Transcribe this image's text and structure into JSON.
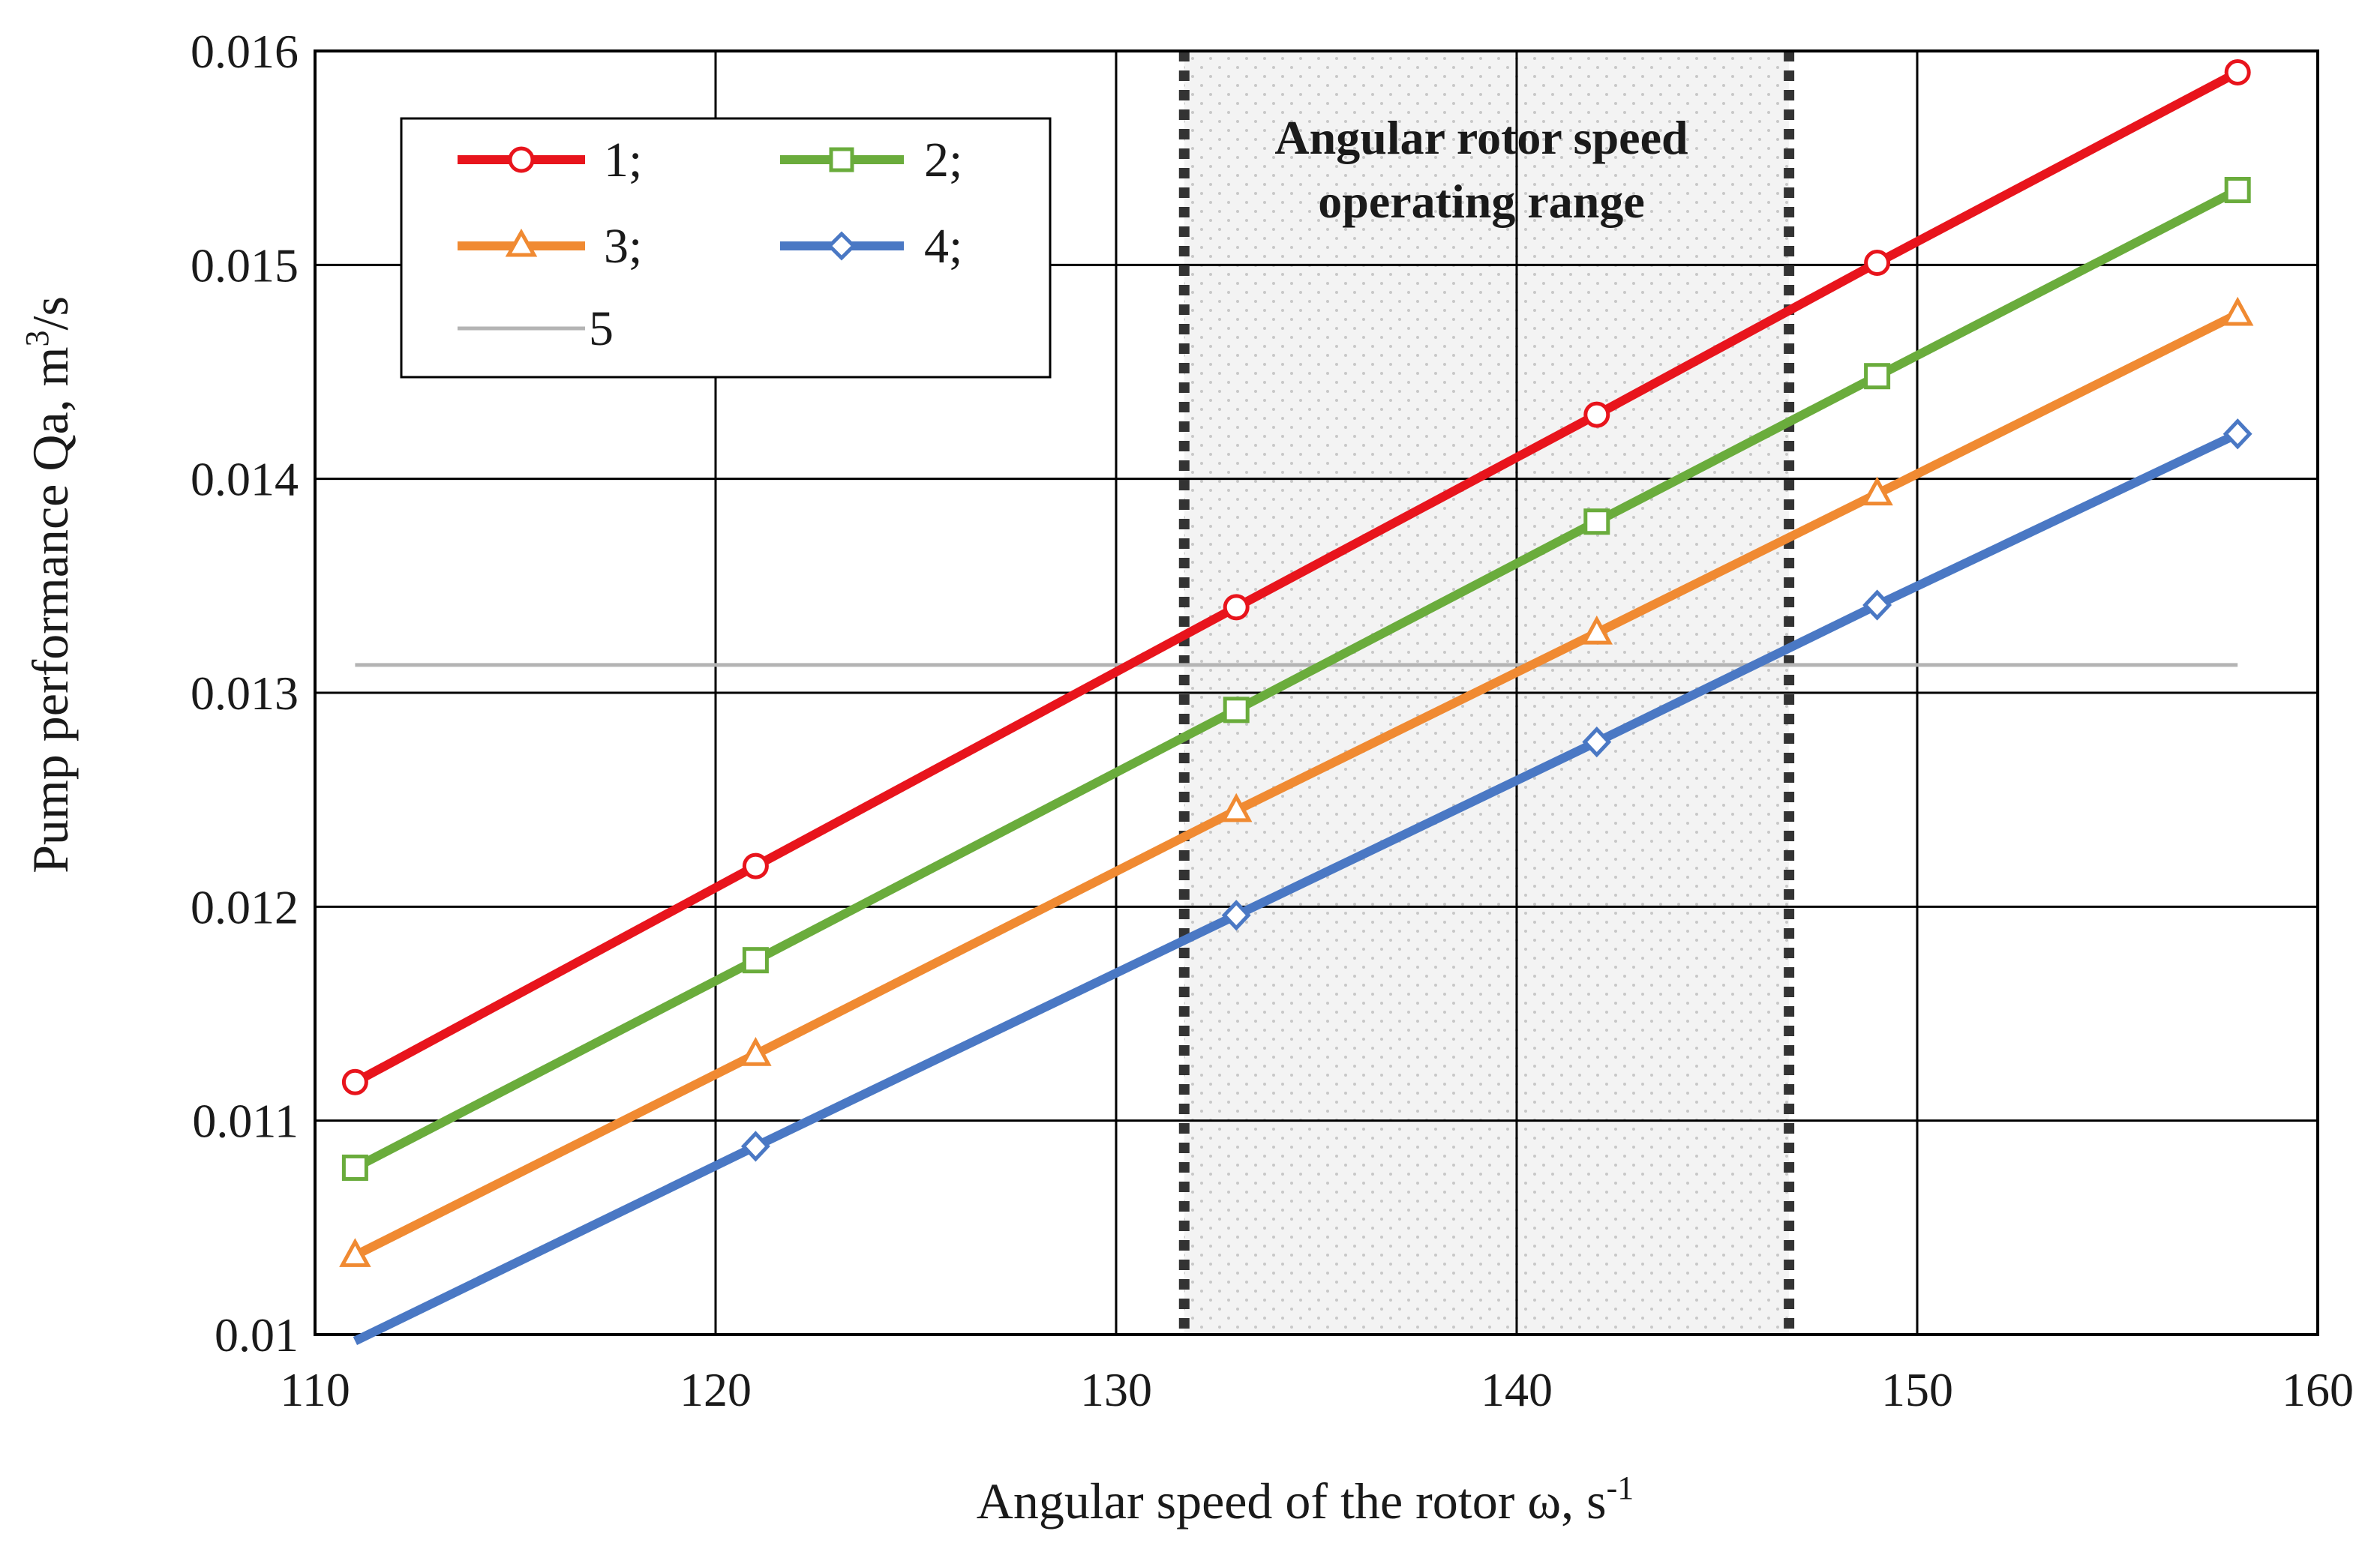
{
  "chart_data": {
    "type": "line",
    "title": "",
    "xlabel": "Angular speed of the rotor  ω, s",
    "xlabel_sup": "-1",
    "ylabel": "Pump performance  Qa, m",
    "ylabel_sup": "3",
    "ylabel_suffix": "/s",
    "xlim": [
      110,
      160
    ],
    "ylim": [
      0.01,
      0.016
    ],
    "x_ticks": [
      110,
      120,
      130,
      140,
      150,
      160
    ],
    "x_tick_labels": [
      "110",
      "120",
      "130",
      "140",
      "150",
      "160"
    ],
    "y_ticks": [
      0.01,
      0.011,
      0.012,
      0.013,
      0.014,
      0.015,
      0.016
    ],
    "y_tick_labels": [
      "0.01",
      "0.011",
      "0.012",
      "0.013",
      "0.014",
      "0.015",
      "0.016"
    ],
    "grid": true,
    "legend_position": "top-left",
    "x": [
      111,
      121,
      133,
      142,
      149,
      158
    ],
    "series": [
      {
        "name": "1;",
        "color": "#e8141c",
        "marker": "circle",
        "values": [
          0.01118,
          0.01219,
          0.0134,
          0.0143,
          0.01501,
          0.0159
        ]
      },
      {
        "name": "2;",
        "color": "#6aac3c",
        "marker": "square",
        "values": [
          0.01078,
          0.01175,
          0.01292,
          0.0138,
          0.01448,
          0.01535
        ]
      },
      {
        "name": "3;",
        "color": "#f08a32",
        "marker": "triangle",
        "values": [
          0.01037,
          0.01131,
          0.01245,
          0.01328,
          0.01393,
          0.01477
        ]
      },
      {
        "name": "4;",
        "color": "#4a78c4",
        "marker": "diamond",
        "values": [
          0.00997,
          0.01088,
          0.01196,
          0.01277,
          0.01341,
          0.01421
        ]
      }
    ],
    "reference_line": {
      "name": "5",
      "color": "#b4b4b4",
      "value": 0.01313,
      "x_range": [
        111,
        158
      ]
    },
    "operating_range": {
      "x_min": 131.7,
      "x_max": 146.8,
      "label_line1": "Angular rotor speed",
      "label_line2": "operating range"
    }
  }
}
